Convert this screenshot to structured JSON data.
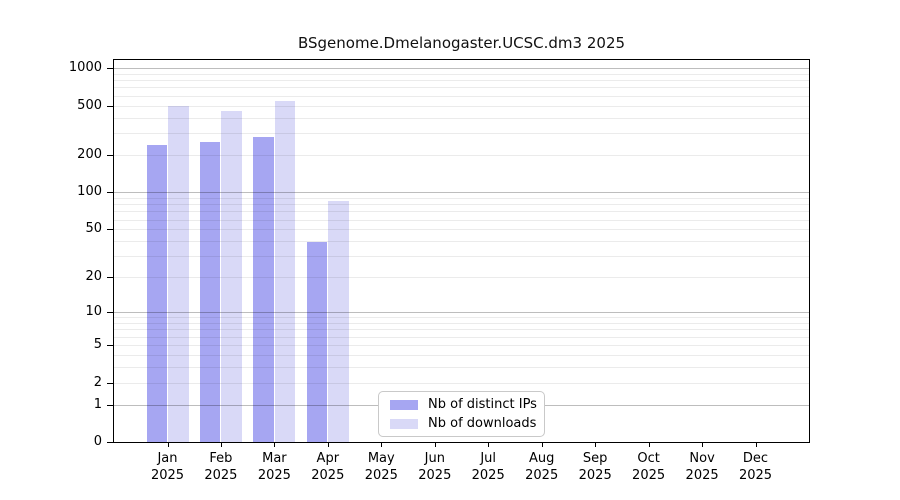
{
  "chart_data": {
    "type": "bar",
    "title": "BSgenome.Dmelanogaster.UCSC.dm3 2025",
    "categories": [
      "Jan",
      "Feb",
      "Mar",
      "Apr",
      "May",
      "Jun",
      "Jul",
      "Aug",
      "Sep",
      "Oct",
      "Nov",
      "Dec"
    ],
    "year_label": "2025",
    "series": [
      {
        "name": "Nb of distinct IPs",
        "color": "#a6a6f2",
        "values": [
          240,
          255,
          280,
          39,
          0,
          0,
          0,
          0,
          0,
          0,
          0,
          0
        ]
      },
      {
        "name": "Nb of downloads",
        "color": "#d9d9f7",
        "values": [
          500,
          455,
          540,
          85,
          0,
          0,
          0,
          0,
          0,
          0,
          0,
          0
        ]
      }
    ],
    "yticks": [
      0,
      1,
      2,
      5,
      10,
      20,
      50,
      100,
      200,
      500,
      1000
    ],
    "scale": "log1p",
    "ylim": [
      0,
      1100
    ],
    "grid": {
      "major": [
        1,
        10,
        100,
        1000
      ],
      "minor": [
        2,
        3,
        4,
        5,
        6,
        7,
        8,
        9,
        20,
        30,
        40,
        50,
        60,
        70,
        80,
        90,
        200,
        300,
        400,
        500,
        600,
        700,
        800,
        900
      ]
    },
    "legend_position": "bottom-center"
  }
}
